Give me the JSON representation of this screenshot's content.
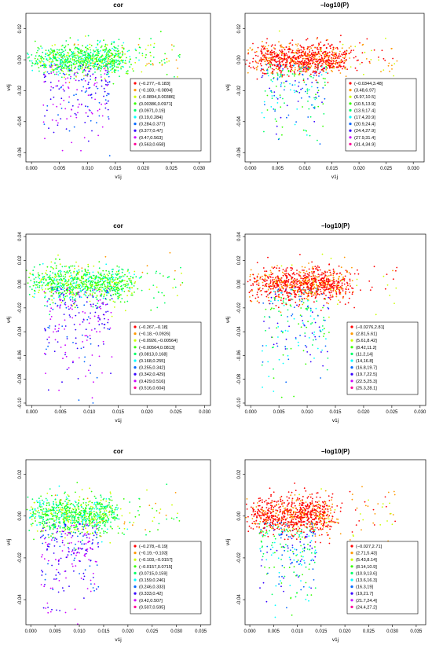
{
  "colors": [
    "#FF0000",
    "#FF9900",
    "#CCFF00",
    "#33FF00",
    "#00FF66",
    "#00FFFF",
    "#0066FF",
    "#3300FF",
    "#CC00FF",
    "#FF0099"
  ],
  "chart_data": [
    {
      "type": "scatter",
      "title": "cor",
      "xlabel": "v1j",
      "ylabel": "v4j",
      "xlim": [
        -0.001,
        0.032
      ],
      "ylim": [
        -0.066,
        0.03
      ],
      "xticks": [
        0.0,
        0.005,
        0.01,
        0.015,
        0.02,
        0.025,
        0.03
      ],
      "xtick_labels": [
        "0.000",
        "0.005",
        "0.010",
        "0.015",
        "0.020",
        "0.025",
        "0.030"
      ],
      "yticks": [
        0.02,
        0.0,
        -0.02,
        -0.04,
        -0.06
      ],
      "ytick_labels": [
        "0.02",
        "0.00",
        "-0.02",
        "-0.04",
        "-0.06"
      ],
      "legend_position": "bottom-right",
      "legend": [
        "(−0.277,−0.183]",
        "(−0.183,−0.0894]",
        "(−0.0894,0.00386]",
        "(0.00386,0.0971]",
        "(0.0971,0.19]",
        "(0.19,0.284]",
        "(0.284,0.377]",
        "(0.377,0.47]",
        "(0.47,0.563]",
        "(0.563,0.658]"
      ]
    },
    {
      "type": "scatter",
      "title": "−log10(P)",
      "xlabel": "v1j",
      "ylabel": "v4j",
      "xlim": [
        -0.001,
        0.032
      ],
      "ylim": [
        -0.066,
        0.03
      ],
      "xticks": [
        0.0,
        0.005,
        0.01,
        0.015,
        0.02,
        0.025,
        0.03
      ],
      "xtick_labels": [
        "0.000",
        "0.005",
        "0.010",
        "0.015",
        "0.020",
        "0.025",
        "0.030"
      ],
      "yticks": [
        0.02,
        0.0,
        -0.02,
        -0.04,
        -0.06
      ],
      "ytick_labels": [
        "0.02",
        "0.00",
        "-0.02",
        "-0.04",
        "-0.06"
      ],
      "legend_position": "bottom-right",
      "legend": [
        "(−0.0344,3.48]",
        "(3.48,6.97]",
        "(6.97,10.5]",
        "(10.5,13.9]",
        "(13.9,17.4]",
        "(17.4,20.9]",
        "(20.9,24.4]",
        "(24.4,27.9]",
        "(27.9,31.4]",
        "(31.4,34.9]"
      ]
    },
    {
      "type": "scatter",
      "title": "cor",
      "xlabel": "v1j",
      "ylabel": "v4j",
      "xlim": [
        -0.001,
        0.031
      ],
      "ylim": [
        -0.102,
        0.042
      ],
      "xticks": [
        0.0,
        0.005,
        0.01,
        0.015,
        0.02,
        0.025,
        0.03
      ],
      "xtick_labels": [
        "0.000",
        "0.005",
        "0.010",
        "0.015",
        "0.020",
        "0.025",
        "0.030"
      ],
      "yticks": [
        0.04,
        0.02,
        0.0,
        -0.02,
        -0.04,
        -0.06,
        -0.08,
        -0.1
      ],
      "ytick_labels": [
        "0.04",
        "0.02",
        "0.00",
        "-0.02",
        "-0.04",
        "-0.06",
        "-0.08",
        "-0.10"
      ],
      "legend_position": "bottom-right",
      "legend": [
        "(−0.267,−0.18]",
        "(−0.18,−0.0926]",
        "(−0.0926,−0.00564]",
        "(−0.00564,0.0813]",
        "(0.0813,0.168]",
        "(0.168,0.255]",
        "(0.255,0.342]",
        "(0.342,0.429]",
        "(0.429,0.516]",
        "(0.516,0.604]"
      ]
    },
    {
      "type": "scatter",
      "title": "−log10(P)",
      "xlabel": "v1j",
      "ylabel": "v4j",
      "xlim": [
        -0.001,
        0.031
      ],
      "ylim": [
        -0.102,
        0.042
      ],
      "xticks": [
        0.0,
        0.005,
        0.01,
        0.015,
        0.02,
        0.025,
        0.03
      ],
      "xtick_labels": [
        "0.000",
        "0.005",
        "0.010",
        "0.015",
        "0.020",
        "0.025",
        "0.030"
      ],
      "yticks": [
        0.04,
        0.02,
        0.0,
        -0.02,
        -0.04,
        -0.06,
        -0.08,
        -0.1
      ],
      "ytick_labels": [
        "0.04",
        "0.02",
        "0.00",
        "-0.02",
        "-0.04",
        "-0.06",
        "-0.08",
        "-0.10"
      ],
      "legend_position": "bottom-right",
      "legend": [
        "(−0.0276,2.81]",
        "(2.81,5.61]",
        "(5.61,8.42]",
        "(8.42,11.2]",
        "(11.2,14]",
        "(14,16.8]",
        "(16.8,19.7]",
        "(19.7,22.5]",
        "(22.5,25.3]",
        "(25.3,28.1]"
      ]
    },
    {
      "type": "scatter",
      "title": "cor",
      "xlabel": "v1j",
      "ylabel": "v4j",
      "xlim": [
        -0.001,
        0.037
      ],
      "ylim": [
        -0.052,
        0.027
      ],
      "xticks": [
        0.0,
        0.005,
        0.01,
        0.015,
        0.02,
        0.025,
        0.03,
        0.035
      ],
      "xtick_labels": [
        "0.000",
        "0.005",
        "0.010",
        "0.015",
        "0.020",
        "0.025",
        "0.030",
        "0.035"
      ],
      "yticks": [
        0.02,
        0.0,
        -0.02,
        -0.04
      ],
      "ytick_labels": [
        "0.02",
        "0.00",
        "-0.02",
        "-0.04"
      ],
      "legend_position": "bottom-right",
      "legend": [
        "(−0.278,−0.19]",
        "(−0.19,−0.103]",
        "(−0.103,−0.0157]",
        "(−0.0157,0.0715]",
        "(0.0715,0.159]",
        "(0.159,0.246]",
        "(0.246,0.333]",
        "(0.333,0.42]",
        "(0.42,0.507]",
        "(0.507,0.595]"
      ]
    },
    {
      "type": "scatter",
      "title": "−log10(P)",
      "xlabel": "v1j",
      "ylabel": "v4j",
      "xlim": [
        -0.001,
        0.037
      ],
      "ylim": [
        -0.052,
        0.027
      ],
      "xticks": [
        0.0,
        0.005,
        0.01,
        0.015,
        0.02,
        0.025,
        0.03,
        0.035
      ],
      "xtick_labels": [
        "0.000",
        "0.005",
        "0.010",
        "0.015",
        "0.020",
        "0.025",
        "0.030",
        "0.035"
      ],
      "yticks": [
        0.02,
        0.0,
        -0.02,
        -0.04
      ],
      "ytick_labels": [
        "0.02",
        "0.00",
        "-0.02",
        "-0.04"
      ],
      "legend_position": "bottom-right",
      "legend": [
        "(−0.027,2.71]",
        "(2.71,5.43]",
        "(5.43,8.14]",
        "(8.14,10.9]",
        "(10.9,13.6]",
        "(13.6,16.3]",
        "(16.3,19]",
        "(19,21.7]",
        "(21.7,24.4]",
        "(24.4,27.2]"
      ]
    }
  ]
}
